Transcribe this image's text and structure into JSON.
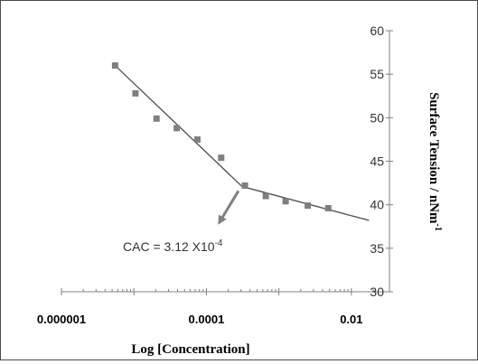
{
  "chart_data": {
    "type": "scatter",
    "xlabel": "Log [Concentration]",
    "ylabel": "Surface Tension / nNm",
    "ylabel_superscript": "-1",
    "x_scale": "log",
    "xlim": [
      1e-06,
      0.02
    ],
    "x_ticks": [
      {
        "value": 1e-06,
        "label": "0.000001"
      },
      {
        "value": 0.0001,
        "label": "0.0001"
      },
      {
        "value": 0.01,
        "label": "0.01"
      }
    ],
    "ylim": [
      30,
      60
    ],
    "y_ticks": [
      30,
      35,
      40,
      45,
      50,
      55,
      60
    ],
    "y_axis_side": "right",
    "grid": false,
    "legend": "none",
    "marker": "square",
    "marker_color": "#7f7f7f",
    "line_color": "#4d4d4d",
    "points": [
      {
        "x": 5.5e-06,
        "y": 56.0
      },
      {
        "x": 1.05e-05,
        "y": 52.8
      },
      {
        "x": 2.05e-05,
        "y": 49.9
      },
      {
        "x": 3.9e-05,
        "y": 48.8
      },
      {
        "x": 7.5e-05,
        "y": 47.5
      },
      {
        "x": 0.00016,
        "y": 45.4
      },
      {
        "x": 0.00034,
        "y": 42.2
      },
      {
        "x": 0.00066,
        "y": 41.0
      },
      {
        "x": 0.00124,
        "y": 40.4
      },
      {
        "x": 0.0025,
        "y": 39.9
      },
      {
        "x": 0.0048,
        "y": 39.6
      }
    ],
    "fit_lines": [
      {
        "from": {
          "x": 5.5e-06,
          "y": 56.0
        },
        "to": {
          "x": 0.00031,
          "y": 42.1
        }
      },
      {
        "from": {
          "x": 0.00031,
          "y": 42.1
        },
        "to": {
          "x": 0.0175,
          "y": 38.2
        }
      }
    ],
    "annotation": {
      "text": "CAC = 3.12 X10",
      "superscript": "-4",
      "points_to": {
        "x": 0.00031,
        "y": 42.1
      }
    }
  }
}
